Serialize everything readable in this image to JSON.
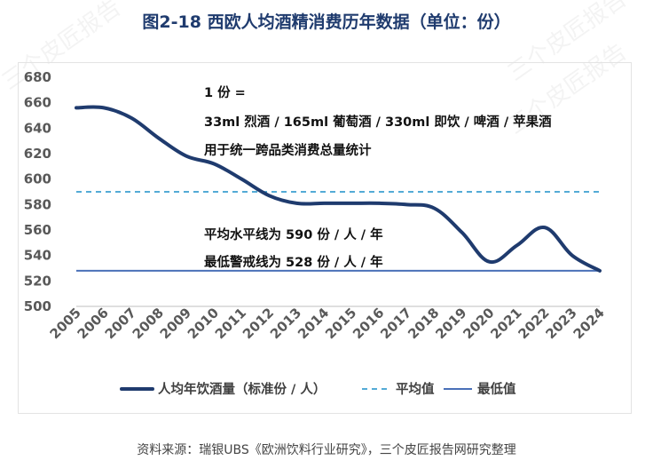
{
  "title": "图2-18  西欧人均酒精消费历年数据（单位：份）",
  "source": "资料来源：瑞银UBS《欧洲饮料行业研究》，三个皮匠报告网研究整理",
  "watermark": "三个皮匠报告",
  "colors": {
    "main": "#1f3b6e",
    "avg": "#1b8fc8",
    "min": "#4a70b8",
    "axis": "#bfbfbf",
    "tick": "#595959"
  },
  "chart_data": {
    "type": "line",
    "title": "图2-18  西欧人均酒精消费历年数据（单位：份）",
    "xlabel": "",
    "ylabel": "",
    "ylim": [
      500,
      680
    ],
    "yticks": [
      500,
      520,
      540,
      560,
      580,
      600,
      620,
      640,
      660,
      680
    ],
    "categories": [
      "2005",
      "2006",
      "2007",
      "2008",
      "2009",
      "2010",
      "2011",
      "2012",
      "2013",
      "2014",
      "2015",
      "2016",
      "2017",
      "2018",
      "2019",
      "2020",
      "2021",
      "2022",
      "2023",
      "2024"
    ],
    "series": [
      {
        "name": "人均年饮酒量（标准份 / 人）",
        "values": [
          656,
          656,
          648,
          632,
          618,
          612,
          600,
          587,
          581,
          581,
          581,
          581,
          580,
          577,
          558,
          535,
          548,
          562,
          540,
          528
        ]
      },
      {
        "name": "平均值",
        "values": [
          590,
          590,
          590,
          590,
          590,
          590,
          590,
          590,
          590,
          590,
          590,
          590,
          590,
          590,
          590,
          590,
          590,
          590,
          590,
          590
        ]
      },
      {
        "name": "最低值",
        "values": [
          528,
          528,
          528,
          528,
          528,
          528,
          528,
          528,
          528,
          528,
          528,
          528,
          528,
          528,
          528,
          528,
          528,
          528,
          528,
          528
        ]
      }
    ],
    "annotations": [
      "1 份 =",
      "33ml 烈酒 / 165ml 葡萄酒 / 330ml 即饮 / 啤酒 / 苹果酒",
      "用于统一跨品类消费总量统计",
      "平均水平线为 590 份 / 人 / 年",
      "最低警戒线为 528 份 / 人 / 年"
    ],
    "legend_position": "bottom"
  }
}
